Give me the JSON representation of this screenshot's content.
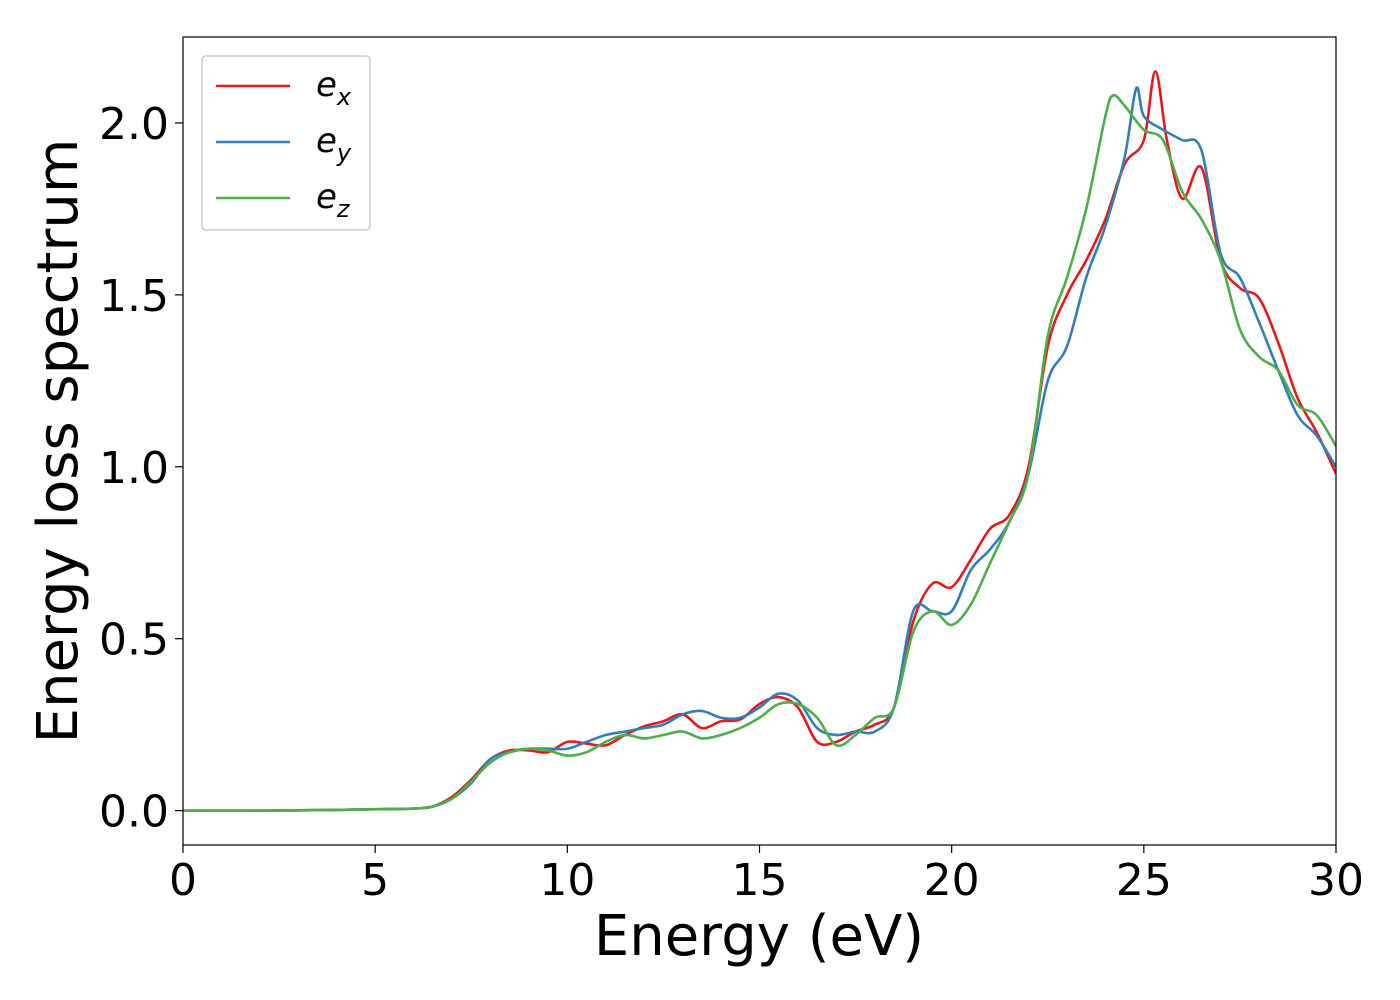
{
  "chart_data": {
    "type": "line",
    "title": "",
    "xlabel": "Energy (eV)",
    "ylabel": "Energy loss spectrum",
    "xlim": [
      0,
      30
    ],
    "ylim": [
      -0.1,
      2.25
    ],
    "xticks": [
      0,
      5,
      10,
      15,
      20,
      25,
      30
    ],
    "xtick_labels": [
      "0",
      "5",
      "10",
      "15",
      "20",
      "25",
      "30"
    ],
    "yticks": [
      0.0,
      0.5,
      1.0,
      1.5,
      2.0
    ],
    "ytick_labels": [
      "0.0",
      "0.5",
      "1.0",
      "1.5",
      "2.0"
    ],
    "grid": false,
    "legend_position": "top-left",
    "series": [
      {
        "name": "e_x",
        "label_base": "e",
        "label_sub": "x",
        "color": "#e41a1c",
        "x": [
          0,
          2,
          4,
          5,
          6,
          6.5,
          7,
          7.5,
          8,
          8.5,
          9,
          9.5,
          10,
          10.5,
          11,
          11.5,
          12,
          12.5,
          13,
          13.5,
          14,
          14.5,
          15,
          15.5,
          16,
          16.5,
          17,
          17.5,
          18,
          18.5,
          19,
          19.5,
          20,
          20.5,
          21,
          21.5,
          22,
          22.5,
          23,
          23.5,
          24,
          24.5,
          25,
          25.3,
          25.6,
          26,
          26.5,
          27,
          27.5,
          28,
          28.5,
          29,
          29.5,
          30
        ],
        "y": [
          0,
          0,
          0.002,
          0.004,
          0.006,
          0.012,
          0.04,
          0.09,
          0.15,
          0.175,
          0.175,
          0.17,
          0.2,
          0.195,
          0.19,
          0.22,
          0.245,
          0.26,
          0.28,
          0.24,
          0.26,
          0.265,
          0.31,
          0.33,
          0.3,
          0.2,
          0.2,
          0.23,
          0.25,
          0.3,
          0.55,
          0.66,
          0.65,
          0.73,
          0.82,
          0.86,
          1.0,
          1.35,
          1.5,
          1.6,
          1.72,
          1.88,
          1.95,
          2.15,
          1.95,
          1.78,
          1.87,
          1.6,
          1.52,
          1.49,
          1.36,
          1.2,
          1.1,
          0.98
        ]
      },
      {
        "name": "e_y",
        "label_base": "e",
        "label_sub": "y",
        "color": "#377eb8",
        "x": [
          0,
          2,
          4,
          5,
          6,
          6.5,
          7,
          7.5,
          8,
          8.5,
          9,
          9.5,
          10,
          10.5,
          11,
          11.5,
          12,
          12.5,
          13,
          13.5,
          14,
          14.5,
          15,
          15.5,
          16,
          16.5,
          17,
          17.5,
          18,
          18.5,
          19,
          19.5,
          20,
          20.5,
          21,
          21.5,
          22,
          22.5,
          23,
          23.5,
          24,
          24.5,
          24.8,
          25,
          25.5,
          26,
          26.5,
          27,
          27.5,
          28,
          28.5,
          29,
          29.5,
          30
        ],
        "y": [
          0,
          0,
          0.002,
          0.004,
          0.006,
          0.012,
          0.035,
          0.08,
          0.15,
          0.17,
          0.18,
          0.18,
          0.18,
          0.2,
          0.22,
          0.23,
          0.24,
          0.25,
          0.28,
          0.29,
          0.27,
          0.27,
          0.3,
          0.34,
          0.32,
          0.24,
          0.22,
          0.23,
          0.23,
          0.3,
          0.58,
          0.58,
          0.58,
          0.7,
          0.76,
          0.84,
          0.98,
          1.25,
          1.35,
          1.55,
          1.7,
          1.9,
          2.1,
          2.02,
          1.98,
          1.95,
          1.92,
          1.62,
          1.55,
          1.42,
          1.28,
          1.15,
          1.09,
          1.0
        ]
      },
      {
        "name": "e_z",
        "label_base": "e",
        "label_sub": "z",
        "color": "#4daf4a",
        "x": [
          0,
          2,
          4,
          5,
          6,
          6.5,
          7,
          7.5,
          8,
          8.5,
          9,
          9.5,
          10,
          10.5,
          11,
          11.5,
          12,
          12.5,
          13,
          13.5,
          14,
          14.5,
          15,
          15.5,
          16,
          16.5,
          17,
          17.5,
          18,
          18.5,
          19,
          19.5,
          20,
          20.5,
          21,
          21.5,
          22,
          22.5,
          23,
          23.5,
          24,
          24.2,
          24.5,
          25,
          25.5,
          26,
          26.5,
          27,
          27.5,
          28,
          28.5,
          29,
          29.5,
          30
        ],
        "y": [
          0,
          0,
          0.002,
          0.004,
          0.006,
          0.012,
          0.035,
          0.085,
          0.14,
          0.17,
          0.18,
          0.175,
          0.16,
          0.17,
          0.2,
          0.22,
          0.21,
          0.22,
          0.23,
          0.21,
          0.22,
          0.24,
          0.27,
          0.31,
          0.31,
          0.27,
          0.19,
          0.22,
          0.27,
          0.3,
          0.52,
          0.58,
          0.54,
          0.6,
          0.72,
          0.84,
          0.98,
          1.38,
          1.55,
          1.75,
          2.02,
          2.08,
          2.05,
          1.98,
          1.95,
          1.8,
          1.72,
          1.6,
          1.4,
          1.32,
          1.28,
          1.18,
          1.15,
          1.06
        ]
      }
    ]
  }
}
